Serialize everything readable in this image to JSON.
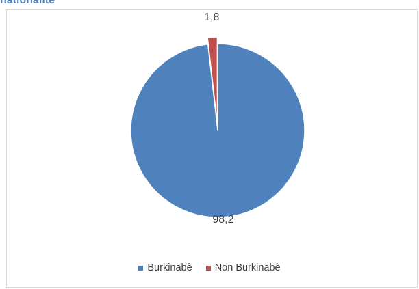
{
  "header": {
    "title": "nationalité"
  },
  "chart_data": {
    "type": "pie",
    "categories": [
      "Burkinabè",
      "Non Burkinabè"
    ],
    "values": [
      98.2,
      1.8
    ],
    "data_labels": [
      "98,2",
      "1,8"
    ],
    "colors": [
      "#4f81bd",
      "#c0504d"
    ],
    "legend_position": "bottom",
    "start_angle": "top",
    "direction": "clockwise",
    "exploded_slice": "Non Burkinabè"
  }
}
